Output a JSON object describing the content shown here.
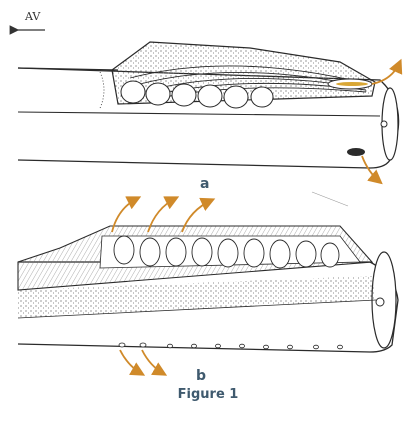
{
  "direction_label": "AV",
  "panel_a_label": "a",
  "panel_b_label": "b",
  "caption": "Figure 1",
  "colors": {
    "ink": "#2b2b2b",
    "flow_arrow": "#d08a2a",
    "label": "#3f5a6e",
    "background": "#ffffff"
  },
  "icons": [
    "direction-arrow-icon",
    "outflow-arrow-icon"
  ]
}
